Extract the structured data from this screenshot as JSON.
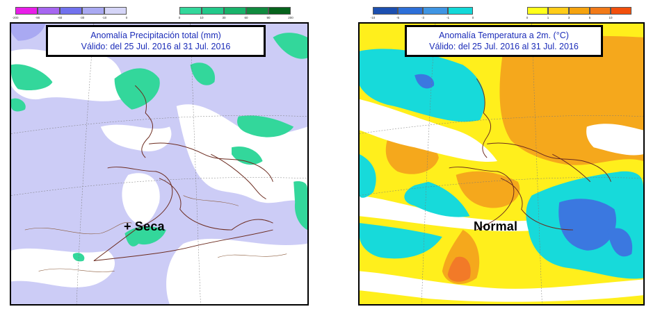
{
  "left_panel": {
    "title_line1": "Anomalía Precipitación total (mm)",
    "title_line2": "Válido: del 25 Jul. 2016 al 31 Jul. 2016",
    "map_label": "+ Seca",
    "legend_negative": {
      "colors": [
        "#e81ee8",
        "#a666f0",
        "#7272ee",
        "#a9a9f2",
        "#d5d5f7"
      ],
      "ticks": [
        "-200",
        "-90",
        "-60",
        "-30",
        "-10",
        "0"
      ]
    },
    "legend_positive": {
      "colors": [
        "#33d79b",
        "#22c98a",
        "#18b36a",
        "#108a3e",
        "#06631c"
      ],
      "ticks": [
        "0",
        "10",
        "30",
        "60",
        "90",
        "200"
      ]
    },
    "colors": {
      "ocean": "#ccccf6",
      "dry": "#d5d5f7",
      "wet": "#33d79b",
      "neutral": "#ffffff"
    }
  },
  "right_panel": {
    "title_line1": "Anomalía Temperatura a 2m. (°C)",
    "title_line2": "Válido: del 25 Jul. 2016 al 31 Jul. 2016",
    "map_label": "Normal",
    "legend_negative": {
      "colors": [
        "#1c4fb0",
        "#2d6fd8",
        "#3f95e3",
        "#12d8d8"
      ],
      "ticks": [
        "-10",
        "-5",
        "-3",
        "-1",
        "0"
      ]
    },
    "legend_positive": {
      "colors": [
        "#ffff1a",
        "#ffcc18",
        "#f5a30f",
        "#f27a18",
        "#f24f0c"
      ],
      "ticks": [
        "0",
        "1",
        "3",
        "5",
        "10"
      ]
    },
    "colors": {
      "cold": "#17dada",
      "cool_dark": "#3b78e0",
      "warm": "#ffef1c",
      "warmer": "#f5a81c",
      "hot": "#f27a28",
      "neutral": "#ffffff"
    }
  }
}
